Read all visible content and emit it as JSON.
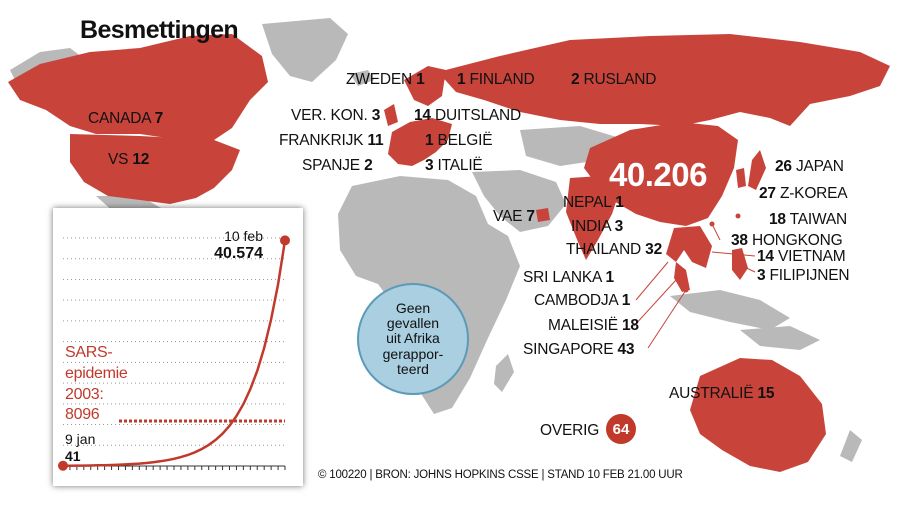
{
  "title": "Besmettingen",
  "colors": {
    "land": "#b9b9b9",
    "affected": "#c8443a",
    "accent": "#c0392b",
    "bubble": "#a9cfe0",
    "line": "#c0392b"
  },
  "china": {
    "name": "",
    "count": "40.206"
  },
  "countries": [
    {
      "key": "canada",
      "name": "CANADA",
      "count": "7",
      "order": "name-first"
    },
    {
      "key": "vs",
      "name": "VS",
      "count": "12",
      "order": "name-first"
    },
    {
      "key": "zweden",
      "name": "ZWEDEN",
      "count": "1",
      "order": "name-first"
    },
    {
      "key": "finland",
      "name": "FINLAND",
      "count": "1",
      "order": "count-first"
    },
    {
      "key": "rusland",
      "name": "RUSLAND",
      "count": "2",
      "order": "count-first"
    },
    {
      "key": "verkon",
      "name": "VER. KON.",
      "count": "3",
      "order": "name-first"
    },
    {
      "key": "duitsland",
      "name": "DUITSLAND",
      "count": "14",
      "order": "count-first"
    },
    {
      "key": "frankrijk",
      "name": "FRANKRIJK",
      "count": "11",
      "order": "name-first"
    },
    {
      "key": "belgie",
      "name": "BELGIË",
      "count": "1",
      "order": "count-first"
    },
    {
      "key": "spanje",
      "name": "SPANJE",
      "count": "2",
      "order": "name-first"
    },
    {
      "key": "italie",
      "name": "ITALIË",
      "count": "3",
      "order": "count-first"
    },
    {
      "key": "vae",
      "name": "VAE",
      "count": "7",
      "order": "name-first"
    },
    {
      "key": "nepal",
      "name": "NEPAL",
      "count": "1",
      "order": "name-first"
    },
    {
      "key": "india",
      "name": "INDIA",
      "count": "3",
      "order": "name-first"
    },
    {
      "key": "thailand",
      "name": "THAILAND",
      "count": "32",
      "order": "name-first"
    },
    {
      "key": "srilanka",
      "name": "SRI LANKA",
      "count": "1",
      "order": "name-first"
    },
    {
      "key": "cambodja",
      "name": "CAMBODJA",
      "count": "1",
      "order": "name-first"
    },
    {
      "key": "maleisie",
      "name": "MALEISIË",
      "count": "18",
      "order": "name-first"
    },
    {
      "key": "singapore",
      "name": "SINGAPORE",
      "count": "43",
      "order": "name-first"
    },
    {
      "key": "japan",
      "name": "JAPAN",
      "count": "26",
      "order": "count-first"
    },
    {
      "key": "zkorea",
      "name": "Z-KOREA",
      "count": "27",
      "order": "count-first"
    },
    {
      "key": "taiwan",
      "name": "TAIWAN",
      "count": "18",
      "order": "count-first"
    },
    {
      "key": "hongkong",
      "name": "HONGKONG",
      "count": "38",
      "order": "count-first"
    },
    {
      "key": "vietnam",
      "name": "VIETNAM",
      "count": "14",
      "order": "count-first"
    },
    {
      "key": "filipijnen",
      "name": "FILIPIJNEN",
      "count": "3",
      "order": "count-first"
    },
    {
      "key": "australie",
      "name": "AUSTRALIË",
      "count": "15",
      "order": "name-first"
    }
  ],
  "africa_note": "Geen\ngevallen\nuit Afrika\ngerappor-\nteerd",
  "overig": {
    "label": "OVERIG",
    "count": "64"
  },
  "source": "© 100220 | BRON: JOHNS HOPKINS CSSE | STAND 10 FEB 21.00 UUR",
  "inset": {
    "start_label": "9 jan",
    "start_value": "41",
    "end_label": "10 feb",
    "end_value": "40.574",
    "sars_label": "SARS-\nepidemie\n2003:\n8096",
    "sars_value": 8096,
    "ylim": [
      0,
      41000
    ]
  },
  "chart_data": {
    "type": "line",
    "x": [
      "9 jan",
      "10 feb"
    ],
    "series": [
      {
        "values": [
          41,
          40574
        ]
      }
    ],
    "reference": {
      "label": "SARS-epidemie 2003: 8096",
      "value": 8096
    },
    "xlabel": "",
    "ylabel": "",
    "grid": true
  }
}
